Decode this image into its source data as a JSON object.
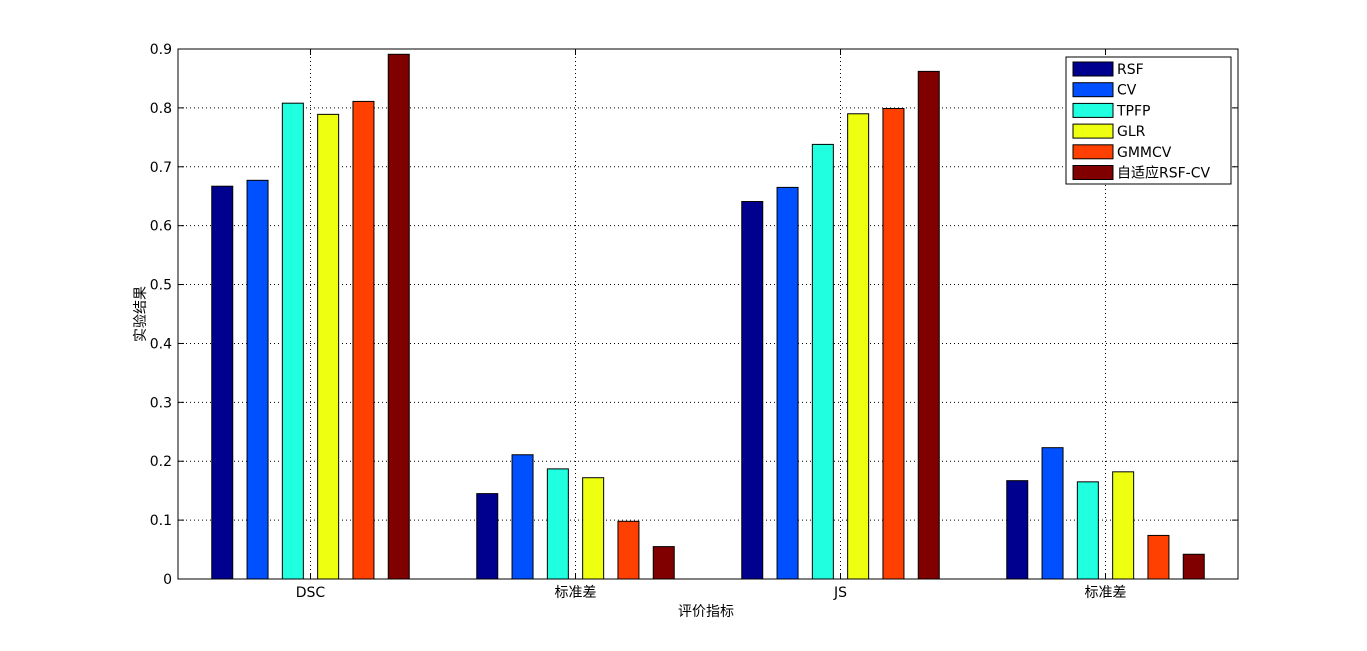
{
  "chart_data": {
    "type": "bar",
    "xlabel": "评价指标",
    "ylabel": "实验结果",
    "ylim": [
      0,
      0.9
    ],
    "yticks": [
      "0",
      "0.1",
      "0.2",
      "0.3",
      "0.4",
      "0.5",
      "0.6",
      "0.7",
      "0.8",
      "0.9"
    ],
    "grid": true,
    "legend_position": "top-right",
    "categories": [
      "DSC",
      "标准差",
      "JS",
      "标准差"
    ],
    "series": [
      {
        "name": "RSF",
        "color": "#00008F",
        "values": [
          0.667,
          0.145,
          0.641,
          0.167
        ]
      },
      {
        "name": "CV",
        "color": "#0050FF",
        "values": [
          0.677,
          0.211,
          0.665,
          0.223
        ]
      },
      {
        "name": "TPFP",
        "color": "#20FFDF",
        "values": [
          0.808,
          0.187,
          0.738,
          0.165
        ]
      },
      {
        "name": "GLR",
        "color": "#EFFF10",
        "values": [
          0.789,
          0.172,
          0.79,
          0.182
        ]
      },
      {
        "name": "GMMCV",
        "color": "#FF4000",
        "values": [
          0.811,
          0.098,
          0.799,
          0.074
        ]
      },
      {
        "name": "自适应RSF-CV",
        "color": "#800000",
        "values": [
          0.891,
          0.055,
          0.862,
          0.042
        ]
      }
    ]
  }
}
